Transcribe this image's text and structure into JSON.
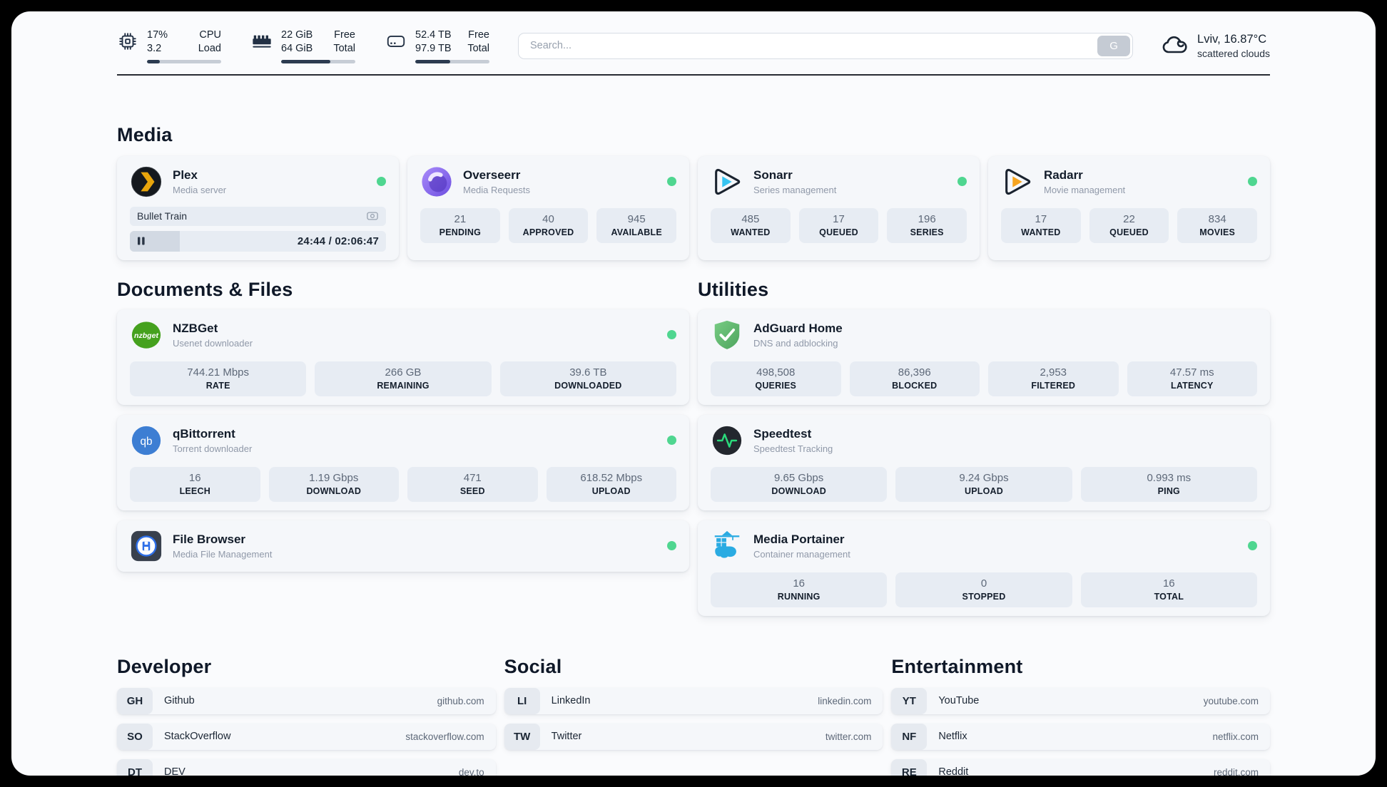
{
  "header": {
    "stats": [
      {
        "icon": "cpu-icon",
        "value_top": "17%",
        "value_bottom": "3.2",
        "label_top": "CPU",
        "label_bottom": "Load",
        "progress": 17
      },
      {
        "icon": "ram-icon",
        "value_top": "22 GiB",
        "value_bottom": "64 GiB",
        "label_top": "Free",
        "label_bottom": "Total",
        "progress": 66
      },
      {
        "icon": "disk-icon",
        "value_top": "52.4 TB",
        "value_bottom": "97.9 TB",
        "label_top": "Free",
        "label_bottom": "Total",
        "progress": 47
      }
    ],
    "search": {
      "placeholder": "Search...",
      "button_label": "G"
    },
    "weather": {
      "icon": "cloud-icon",
      "line1": "Lviv, 16.87°C",
      "line2": "scattered clouds"
    }
  },
  "media": {
    "title": "Media",
    "apps": [
      {
        "icon": "plex-icon",
        "name": "Plex",
        "description": "Media server",
        "online": true,
        "media": {
          "title": "Bullet Train",
          "note_icon": "camera-icon",
          "state_icon": "pause-icon",
          "progress_pct": 19.5,
          "time": "24:44 / 02:06:47"
        }
      },
      {
        "icon": "overseerr-icon",
        "name": "Overseerr",
        "description": "Media Requests",
        "online": true,
        "stats": [
          {
            "value": "21",
            "label": "PENDING"
          },
          {
            "value": "40",
            "label": "APPROVED"
          },
          {
            "value": "945",
            "label": "AVAILABLE"
          }
        ]
      },
      {
        "icon": "sonarr-icon",
        "name": "Sonarr",
        "description": "Series management",
        "online": true,
        "stats": [
          {
            "value": "485",
            "label": "WANTED"
          },
          {
            "value": "17",
            "label": "QUEUED"
          },
          {
            "value": "196",
            "label": "SERIES"
          }
        ]
      },
      {
        "icon": "radarr-icon",
        "name": "Radarr",
        "description": "Movie management",
        "online": true,
        "stats": [
          {
            "value": "17",
            "label": "WANTED"
          },
          {
            "value": "22",
            "label": "QUEUED"
          },
          {
            "value": "834",
            "label": "MOVIES"
          }
        ]
      }
    ]
  },
  "documents": {
    "title": "Documents & Files",
    "apps": [
      {
        "icon": "nzbget-icon",
        "name": "NZBGet",
        "description": "Usenet downloader",
        "online": true,
        "stats": [
          {
            "value": "744.21 Mbps",
            "label": "RATE"
          },
          {
            "value": "266 GB",
            "label": "REMAINING"
          },
          {
            "value": "39.6 TB",
            "label": "DOWNLOADED"
          }
        ]
      },
      {
        "icon": "qbittorrent-icon",
        "name": "qBittorrent",
        "description": "Torrent downloader",
        "online": true,
        "stats": [
          {
            "value": "16",
            "label": "LEECH"
          },
          {
            "value": "1.19 Gbps",
            "label": "DOWNLOAD"
          },
          {
            "value": "471",
            "label": "SEED"
          },
          {
            "value": "618.52 Mbps",
            "label": "UPLOAD"
          }
        ]
      },
      {
        "icon": "filebrowser-icon",
        "name": "File Browser",
        "description": "Media File Management",
        "online": true
      }
    ]
  },
  "utilities": {
    "title": "Utilities",
    "apps": [
      {
        "icon": "adguard-icon",
        "name": "AdGuard Home",
        "description": "DNS and adblocking",
        "online": false,
        "stats": [
          {
            "value": "498,508",
            "label": "QUERIES"
          },
          {
            "value": "86,396",
            "label": "BLOCKED"
          },
          {
            "value": "2,953",
            "label": "FILTERED"
          },
          {
            "value": "47.57 ms",
            "label": "LATENCY"
          }
        ]
      },
      {
        "icon": "speedtest-icon",
        "name": "Speedtest",
        "description": "Speedtest Tracking",
        "online": false,
        "stats": [
          {
            "value": "9.65 Gbps",
            "label": "DOWNLOAD"
          },
          {
            "value": "9.24 Gbps",
            "label": "UPLOAD"
          },
          {
            "value": "0.993 ms",
            "label": "PING"
          }
        ]
      },
      {
        "icon": "portainer-icon",
        "name": "Media Portainer",
        "description": "Container management",
        "online": true,
        "stats": [
          {
            "value": "16",
            "label": "RUNNING"
          },
          {
            "value": "0",
            "label": "STOPPED"
          },
          {
            "value": "16",
            "label": "TOTAL"
          }
        ]
      }
    ]
  },
  "bookmarks": [
    {
      "title": "Developer",
      "links": [
        {
          "abbr": "GH",
          "name": "Github",
          "url": "github.com"
        },
        {
          "abbr": "SO",
          "name": "StackOverflow",
          "url": "stackoverflow.com"
        },
        {
          "abbr": "DT",
          "name": "DEV",
          "url": "dev.to"
        }
      ]
    },
    {
      "title": "Social",
      "links": [
        {
          "abbr": "LI",
          "name": "LinkedIn",
          "url": "linkedin.com"
        },
        {
          "abbr": "TW",
          "name": "Twitter",
          "url": "twitter.com"
        }
      ]
    },
    {
      "title": "Entertainment",
      "links": [
        {
          "abbr": "YT",
          "name": "YouTube",
          "url": "youtube.com"
        },
        {
          "abbr": "NF",
          "name": "Netflix",
          "url": "netflix.com"
        },
        {
          "abbr": "RE",
          "name": "Reddit",
          "url": "reddit.com"
        }
      ]
    }
  ],
  "colors": {
    "status_online": "#4fd690",
    "bar_fill": "#2c3b50",
    "bar_track": "#c7cdd6",
    "divider": "#272b33",
    "text_primary": "#14202e",
    "text_secondary": "#5d6878",
    "text_muted": "#9099a9",
    "card_bg": "#f5f7fa",
    "statbox_bg": "#e7ecf3",
    "page_bg": "#fafbfd",
    "badge_bg": "#e6eaf0",
    "search_btn_bg": "#c5cbd4"
  }
}
